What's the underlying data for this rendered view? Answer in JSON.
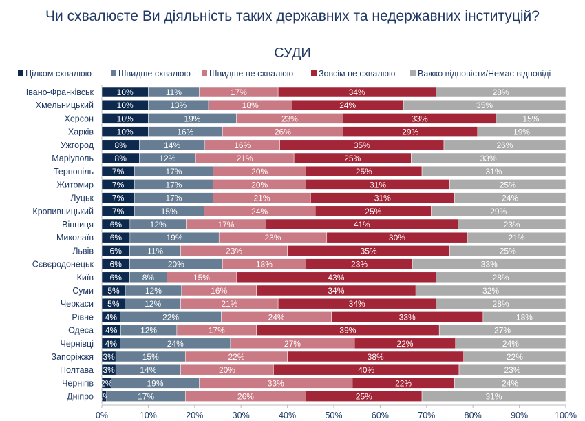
{
  "chart_data": {
    "type": "bar",
    "orientation": "horizontal",
    "stacked": true,
    "title": "Чи схвалюєте Ви діяльність таких державних та недержавних інституцій?",
    "subtitle": "СУДИ",
    "legend_position": "top",
    "xlim": [
      0,
      100
    ],
    "x_ticks": [
      "0%",
      "10%",
      "20%",
      "30%",
      "40%",
      "50%",
      "60%",
      "70%",
      "80%",
      "90%",
      "100%"
    ],
    "categories": [
      "Івано-Франківськ",
      "Хмельницький",
      "Херсон",
      "Харків",
      "Ужгород",
      "Маріуполь",
      "Тернопіль",
      "Житомир",
      "Луцьк",
      "Кропивницький",
      "Вінниця",
      "Миколаїв",
      "Львів",
      "Сєвєродонецьк",
      "Київ",
      "Суми",
      "Черкаси",
      "Рівне",
      "Одеса",
      "Чернівці",
      "Запоріжжя",
      "Полтава",
      "Чернігів",
      "Дніпро"
    ],
    "series": [
      {
        "name": "Цілком схвалюю",
        "color": "#0d2a4e",
        "values": [
          10,
          10,
          10,
          10,
          8,
          8,
          7,
          7,
          7,
          7,
          6,
          6,
          6,
          6,
          6,
          5,
          5,
          4,
          4,
          4,
          3,
          3,
          2,
          1
        ]
      },
      {
        "name": "Швидше схвалюю",
        "color": "#667d94",
        "values": [
          11,
          13,
          19,
          16,
          14,
          12,
          17,
          17,
          17,
          15,
          12,
          19,
          11,
          20,
          8,
          12,
          12,
          22,
          12,
          24,
          15,
          14,
          19,
          17
        ]
      },
      {
        "name": "Швидше не схвалюю",
        "color": "#c97a84",
        "values": [
          17,
          18,
          23,
          26,
          16,
          21,
          20,
          20,
          21,
          24,
          17,
          23,
          23,
          18,
          15,
          16,
          21,
          24,
          17,
          27,
          22,
          20,
          33,
          26
        ]
      },
      {
        "name": "Зовсім не схвалюю",
        "color": "#a32638",
        "values": [
          34,
          24,
          33,
          29,
          35,
          25,
          25,
          31,
          31,
          25,
          41,
          30,
          35,
          23,
          43,
          34,
          34,
          33,
          39,
          22,
          38,
          40,
          22,
          25
        ]
      },
      {
        "name": "Важко відповісти/Немає відповіді",
        "color": "#ababab",
        "values": [
          28,
          35,
          15,
          19,
          26,
          33,
          31,
          25,
          24,
          29,
          23,
          21,
          25,
          33,
          28,
          32,
          28,
          18,
          27,
          24,
          22,
          23,
          24,
          31
        ]
      }
    ]
  }
}
